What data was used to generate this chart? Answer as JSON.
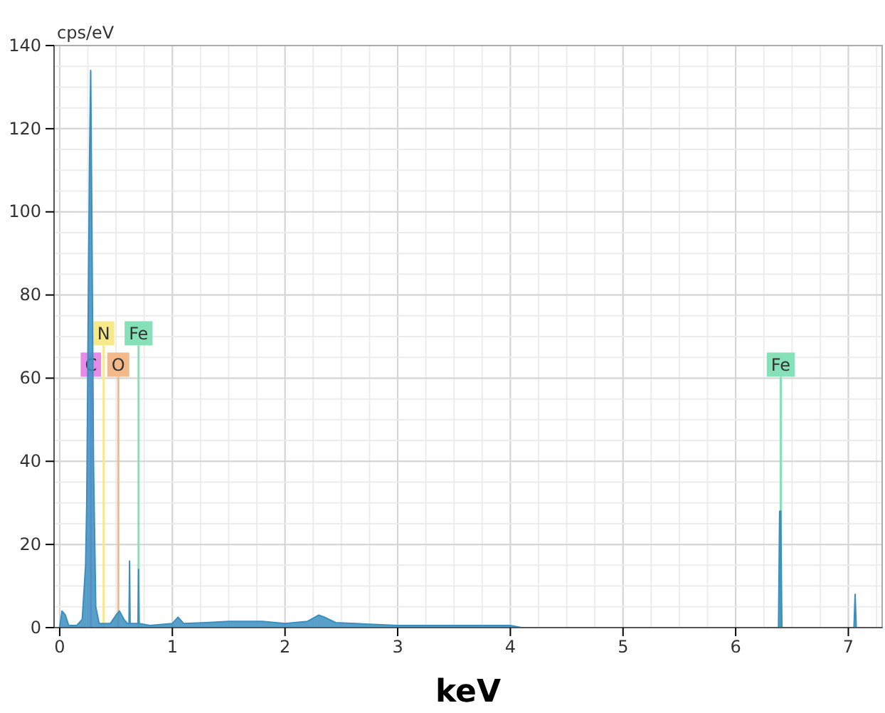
{
  "chart_data": {
    "type": "area",
    "xlabel": "keV",
    "ylabel": "cps/eV",
    "series": [
      {
        "color": "#3b8fbf",
        "x": [
          0,
          0.02,
          0.05,
          0.08,
          0.15,
          0.2,
          0.23,
          0.24,
          0.256,
          0.265,
          0.275,
          0.285,
          0.3,
          0.32,
          0.35,
          0.45,
          0.5,
          0.53,
          0.57,
          0.6,
          0.615,
          0.62,
          0.625,
          0.68,
          0.695,
          0.7,
          0.705,
          0.8,
          1.0,
          1.05,
          1.1,
          1.3,
          1.5,
          1.8,
          2.0,
          2.2,
          2.3,
          2.35,
          2.45,
          3,
          4,
          4.1,
          6.38,
          6.39,
          6.4,
          6.41,
          7.05,
          7.06,
          7.07,
          7.3
        ],
        "values": [
          0,
          4,
          3,
          0.5,
          0.5,
          2,
          15,
          30,
          85,
          113,
          134,
          100,
          40,
          5,
          1,
          1,
          3,
          4,
          2,
          1,
          1,
          16,
          1,
          1,
          1,
          14,
          1,
          0.5,
          1,
          2.5,
          1,
          1.2,
          1.5,
          1.5,
          1,
          1.5,
          3,
          2.5,
          1.2,
          0.5,
          0.5,
          0,
          0,
          28,
          28,
          0,
          0,
          8,
          0,
          0
        ]
      }
    ],
    "xlim": [
      -0.05,
      7.3
    ],
    "ylim": [
      0,
      140
    ],
    "xticks": [
      0,
      1,
      2,
      3,
      4,
      5,
      6,
      7
    ],
    "yticks": [
      0,
      20,
      40,
      60,
      80,
      100,
      120,
      140
    ],
    "grid": true,
    "ref_lines": [
      {
        "axis": "x",
        "value": 0.277,
        "label": "C",
        "color": "#e88ae8"
      },
      {
        "axis": "x",
        "value": 0.39,
        "label": "N",
        "color": "#f7e98a"
      },
      {
        "axis": "x",
        "value": 0.52,
        "label": "O",
        "color": "#f3b98a"
      },
      {
        "axis": "x",
        "value": 0.7,
        "label": "Fe",
        "color": "#86e0b8"
      },
      {
        "axis": "x",
        "value": 6.4,
        "label": "Fe",
        "color": "#86e0b8"
      }
    ]
  }
}
